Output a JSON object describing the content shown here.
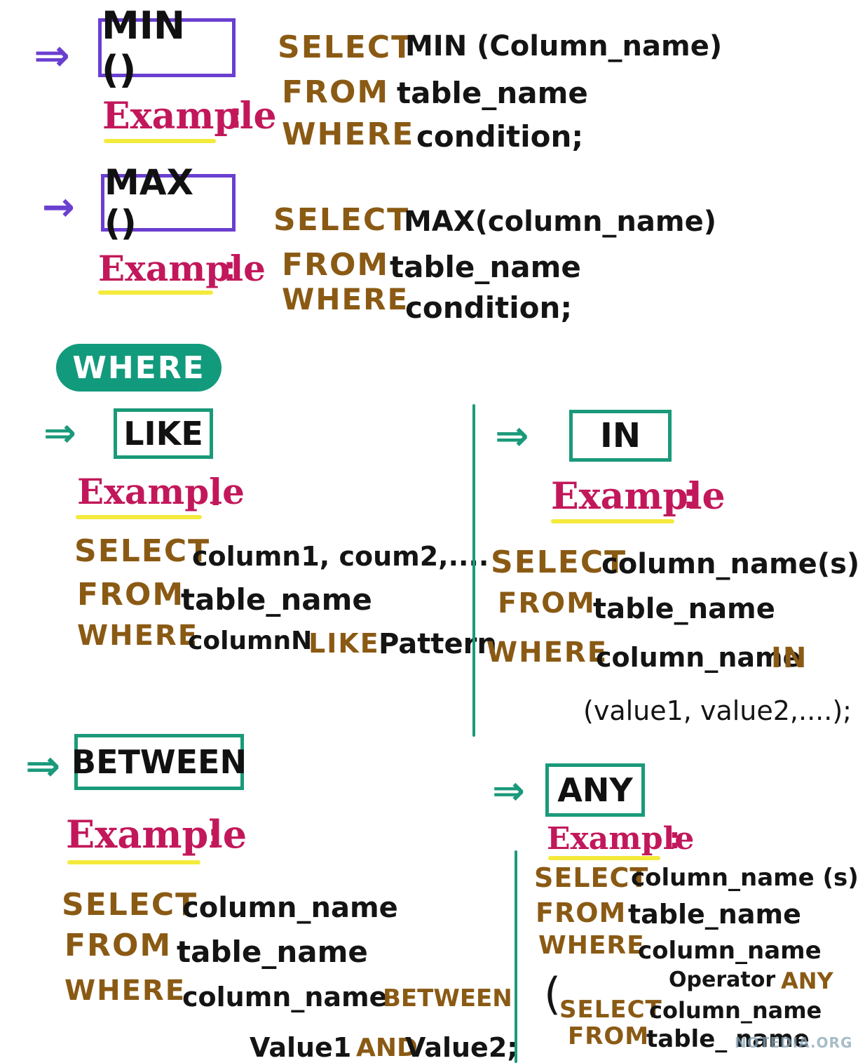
{
  "arrow_glyph": "⇒",
  "example_label": "Example",
  "colon": ":",
  "min": {
    "title": "MIN ()",
    "select_kw": "SELECT",
    "select_expr": "MIN (Column_name)",
    "from_kw": "FROM",
    "from_expr": "table_name",
    "where_kw": "WHERE",
    "where_expr": "condition;"
  },
  "max": {
    "title": "MAX ()",
    "select_kw": "SELECT",
    "select_expr": "MAX(column_name)",
    "from_kw": "FROM",
    "from_expr": "table_name",
    "where_kw": "WHERE",
    "where_expr": "condition;"
  },
  "where_badge": "WHERE",
  "like": {
    "title": "LIKE",
    "select_kw": "SELECT",
    "select_expr": "column1, coum2,....",
    "from_kw": "FROM",
    "from_expr": "table_name",
    "where_kw": "WHERE",
    "where_expr": "columnN",
    "like_kw": "LIKE",
    "pattern": "Pattern"
  },
  "in": {
    "title": "IN",
    "select_kw": "SELECT",
    "select_expr": "column_name(s)",
    "from_kw": "FROM",
    "from_expr": "table_name",
    "where_kw": "WHERE",
    "where_expr": "column_name",
    "in_kw": "IN",
    "values": "(value1, value2,....);"
  },
  "between": {
    "title": "BETWEEN",
    "select_kw": "SELECT",
    "select_expr": "column_name",
    "from_kw": "FROM",
    "from_expr": "table_name",
    "where_kw": "WHERE",
    "where_expr": "column_name",
    "between_kw": "BETWEEN",
    "value1": "Value1",
    "and_kw": "AND",
    "value2": "Value2;"
  },
  "any": {
    "title": "ANY",
    "select_kw": "SELECT",
    "select_expr": "column_name (s)",
    "from_kw": "FROM",
    "from_expr": "table_name",
    "where_kw": "WHERE",
    "where_expr": "column_name",
    "operator": "Operator",
    "any_kw": "ANY",
    "open_paren": "(",
    "sub_select_kw": "SELECT",
    "sub_select_expr": "column_name",
    "sub_from_kw": "FROM",
    "sub_from_expr": "table_ name"
  },
  "watermark": "NOTEDIA.ORG",
  "colors": {
    "purple": "#6a3fd0",
    "green": "#1a9a7a",
    "keyword": "#8a5a14",
    "example": "#c2185b",
    "highlight": "#f4ea3c"
  }
}
